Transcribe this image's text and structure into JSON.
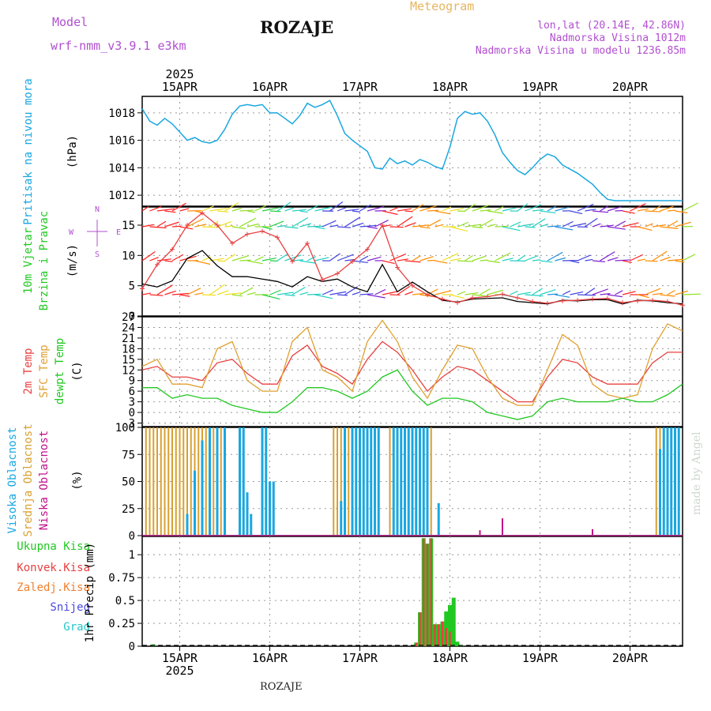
{
  "header": {
    "model_label": "Model",
    "model_name": "wrf-nmm_v3.9.1 e3km",
    "title": "ROZAJE",
    "meteogram_label": "Meteogram",
    "lonlat": "lon,lat (20.14E, 42.86N)",
    "altitude": "Nadmorska Visina 1012m",
    "model_altitude": "Nadmorska Visina u modelu 1236.85m"
  },
  "footer": {
    "station": "ROZAJE",
    "watermark": "made by Angel"
  },
  "axis": {
    "year": "2025",
    "day_labels": [
      "15APR",
      "16APR",
      "17APR",
      "18APR",
      "19APR",
      "20APR"
    ]
  },
  "panel_labels": {
    "pressure": [
      "Pritisak na nivou mora",
      "(hPa)"
    ],
    "wind": [
      "10m Vjetar",
      "Brzina i Pravac",
      "(m/s)"
    ],
    "wind_compass": [
      "N",
      "E",
      "W",
      "S"
    ],
    "temp": [
      "2m Temp",
      "SFC Temp",
      "dewpt Temp",
      "(C)"
    ],
    "cloud": [
      "Visoka Oblacnost",
      "Srednja Oblacnost",
      "Niska Oblacnost",
      "(%)"
    ],
    "precip": [
      "Ukupna Kisa",
      "Konvek.Kisa",
      "Zaledj.Kisa",
      "Snijeg",
      "Grad",
      "1hr Precip (mm)"
    ]
  },
  "colors": {
    "pressure": "#1aa7e0",
    "wind_speed": "#000000",
    "gust": "#e84040",
    "t2m": "#e84040",
    "tsfc": "#e0a030",
    "dewpt": "#22c822",
    "cloud_high": "#1aa7e0",
    "cloud_mid": "#d8a030",
    "cloud_low": "#c0108a",
    "precip_total": "#22c822",
    "precip_conv": "#e84040",
    "precip_frz": "#f08030",
    "snow": "#4a4ae0",
    "hail": "#22c8c8",
    "grid": "#999999"
  },
  "chart_data": [
    {
      "type": "line",
      "name": "pressure",
      "ylabel": "(hPa)",
      "yticks": [
        1012,
        1014,
        1016,
        1018
      ],
      "ylim": [
        1011.2,
        1019.2
      ],
      "xlim": [
        0,
        144
      ],
      "x": [
        0,
        2,
        4,
        6,
        8,
        10,
        12,
        14,
        16,
        18,
        20,
        22,
        24,
        26,
        28,
        30,
        32,
        34,
        36,
        38,
        40,
        42,
        44,
        46,
        48,
        50,
        52,
        54,
        56,
        58,
        60,
        62,
        64,
        66,
        68,
        70,
        72,
        74,
        76,
        78,
        80,
        82,
        84,
        86,
        88,
        90,
        92,
        94,
        96,
        98,
        100,
        102,
        104,
        106,
        108,
        110,
        112,
        114,
        116,
        118,
        120,
        122,
        124,
        126,
        128,
        130,
        132,
        134,
        136,
        138,
        140,
        142,
        144
      ],
      "values": [
        1018.3,
        1017.4,
        1017.1,
        1017.6,
        1017.2,
        1016.6,
        1016.0,
        1016.2,
        1015.9,
        1015.8,
        1016.0,
        1016.8,
        1017.9,
        1018.5,
        1018.6,
        1018.5,
        1018.6,
        1018.0,
        1018.0,
        1017.6,
        1017.2,
        1017.8,
        1018.7,
        1018.4,
        1018.6,
        1018.9,
        1017.8,
        1016.5,
        1016.0,
        1015.6,
        1015.2,
        1014.0,
        1013.9,
        1014.7,
        1014.3,
        1014.5,
        1014.2,
        1014.6,
        1014.4,
        1014.1,
        1013.9,
        1015.5,
        1017.6,
        1018.1,
        1017.9,
        1018.0,
        1017.4,
        1016.4,
        1015.1,
        1014.4,
        1013.8,
        1013.5,
        1014.0,
        1014.6,
        1015.0,
        1014.8,
        1014.2,
        1013.9,
        1013.6,
        1013.2,
        1012.8,
        1012.2,
        1011.7,
        1011.6,
        1011.6,
        1011.6,
        1011.6,
        1011.6,
        1011.6,
        1011.6,
        1011.6,
        1011.6,
        1011.6
      ]
    },
    {
      "type": "line",
      "name": "wind",
      "ylabel": "(m/s)",
      "yticks": [
        0,
        5,
        10,
        15
      ],
      "ylim": [
        0,
        18
      ],
      "xlim": [
        0,
        144
      ],
      "series": [
        {
          "name": "speed",
          "x": [
            0,
            4,
            8,
            12,
            16,
            20,
            24,
            28,
            32,
            36,
            40,
            44,
            48,
            52,
            56,
            60,
            64,
            68,
            72,
            76,
            80,
            84,
            88,
            92,
            96,
            100,
            104,
            108,
            112,
            116,
            120,
            124,
            128,
            132,
            136,
            140,
            144
          ],
          "values": [
            5.3,
            4.8,
            5.8,
            9.5,
            10.8,
            8.3,
            6.5,
            6.5,
            6.1,
            5.7,
            4.8,
            6.5,
            5.7,
            6.1,
            4.8,
            4.0,
            8.5,
            4.0,
            5.6,
            4.0,
            2.6,
            2.3,
            2.8,
            2.9,
            3.0,
            2.4,
            2.2,
            2.0,
            2.6,
            2.5,
            2.7,
            2.7,
            2.0,
            2.6,
            2.5,
            2.2,
            2.0
          ]
        },
        {
          "name": "gust",
          "x": [
            0,
            4,
            8,
            12,
            16,
            20,
            24,
            28,
            32,
            36,
            40,
            44,
            48,
            52,
            56,
            60,
            64,
            68,
            72,
            76,
            80,
            84,
            88,
            92,
            96,
            100,
            104,
            108,
            112,
            116,
            120,
            124,
            128,
            132,
            136,
            140,
            144
          ],
          "values": [
            4.5,
            8.5,
            11.0,
            15.0,
            17.0,
            15.0,
            12.0,
            13.5,
            14.0,
            13.0,
            9.0,
            12.0,
            6.0,
            7.0,
            9.0,
            11.0,
            15.0,
            8.0,
            5.0,
            3.5,
            2.8,
            2.2,
            3.0,
            3.2,
            3.6,
            3.0,
            2.4,
            2.1,
            2.5,
            2.6,
            2.8,
            2.9,
            2.2,
            2.5,
            2.6,
            2.4,
            1.8
          ]
        }
      ]
    },
    {
      "type": "line",
      "name": "temperature",
      "ylabel": "(C)",
      "yticks": [
        -3,
        0,
        3,
        6,
        9,
        12,
        15,
        18,
        21,
        24,
        27
      ],
      "ylim": [
        -4,
        27
      ],
      "xlim": [
        0,
        144
      ],
      "series": [
        {
          "name": "2m Temp",
          "x": [
            0,
            4,
            8,
            12,
            16,
            20,
            24,
            28,
            32,
            36,
            40,
            44,
            48,
            52,
            56,
            60,
            64,
            68,
            72,
            76,
            80,
            84,
            88,
            92,
            96,
            100,
            104,
            108,
            112,
            116,
            120,
            124,
            128,
            132,
            136,
            140,
            144
          ],
          "values": [
            12,
            13,
            10,
            10,
            9,
            14,
            15,
            11,
            8,
            8,
            16,
            19,
            13,
            11,
            8,
            15,
            20,
            17,
            12,
            6,
            10,
            13,
            12,
            9,
            6,
            3,
            3,
            10,
            15,
            14,
            10,
            8,
            8,
            8,
            14,
            17,
            17
          ]
        },
        {
          "name": "SFC Temp",
          "x": [
            0,
            4,
            8,
            12,
            16,
            20,
            24,
            28,
            32,
            36,
            40,
            44,
            48,
            52,
            56,
            60,
            64,
            68,
            72,
            76,
            80,
            84,
            88,
            92,
            96,
            100,
            104,
            108,
            112,
            116,
            120,
            124,
            128,
            132,
            136,
            140,
            144
          ],
          "values": [
            13,
            15,
            8,
            8,
            7,
            18,
            20,
            9,
            6,
            6,
            20,
            24,
            12,
            10,
            6,
            20,
            26,
            20,
            10,
            4,
            12,
            19,
            18,
            10,
            4,
            2,
            2,
            12,
            22,
            19,
            8,
            5,
            4,
            5,
            18,
            25,
            23
          ]
        },
        {
          "name": "dewpt Temp",
          "x": [
            0,
            4,
            8,
            12,
            16,
            20,
            24,
            28,
            32,
            36,
            40,
            44,
            48,
            52,
            56,
            60,
            64,
            68,
            72,
            76,
            80,
            84,
            88,
            92,
            96,
            100,
            104,
            108,
            112,
            116,
            120,
            124,
            128,
            132,
            136,
            140,
            144
          ],
          "values": [
            7,
            7,
            4,
            5,
            4,
            4,
            2,
            1,
            0,
            0,
            3,
            7,
            7,
            6,
            4,
            6,
            10,
            12,
            6,
            2,
            4,
            4,
            3,
            0,
            -1,
            -2,
            -1,
            3,
            4,
            3,
            3,
            3,
            4,
            3,
            3,
            5,
            8
          ]
        }
      ]
    },
    {
      "type": "bar",
      "name": "cloud",
      "ylabel": "(%)",
      "yticks": [
        0,
        25,
        50,
        75,
        100
      ],
      "ylim": [
        0,
        100
      ],
      "xlim": [
        0,
        144
      ],
      "series": [
        {
          "name": "Visoka Oblacnost",
          "x": [
            12,
            14,
            16,
            18,
            20,
            22,
            26,
            27,
            28,
            29,
            32,
            33,
            34,
            35,
            53,
            54,
            56,
            57,
            58,
            59,
            60,
            61,
            62,
            63,
            67,
            68,
            69,
            70,
            71,
            72,
            73,
            74,
            75,
            76,
            79,
            138,
            139,
            140,
            141,
            142,
            143
          ],
          "values": [
            20,
            60,
            88,
            100,
            100,
            100,
            100,
            100,
            40,
            20,
            100,
            100,
            50,
            50,
            32,
            100,
            100,
            100,
            100,
            100,
            100,
            100,
            100,
            100,
            100,
            100,
            100,
            100,
            100,
            100,
            100,
            100,
            100,
            100,
            30,
            80,
            100,
            100,
            100,
            100,
            100
          ]
        },
        {
          "name": "Srednja Oblacnost",
          "x": [
            1,
            2,
            3,
            4,
            5,
            6,
            7,
            8,
            9,
            10,
            11,
            12,
            13,
            14,
            15,
            16,
            17,
            18,
            19,
            20,
            21,
            22,
            51,
            52,
            53,
            54,
            55,
            56,
            57,
            58,
            59,
            60,
            61,
            62,
            63,
            66,
            67,
            68,
            69,
            70,
            71,
            72,
            73,
            74,
            75,
            76,
            77,
            137,
            138,
            139,
            140,
            141,
            142,
            143
          ],
          "values": [
            100,
            100,
            100,
            100,
            100,
            100,
            100,
            100,
            100,
            100,
            100,
            100,
            100,
            100,
            100,
            100,
            100,
            100,
            100,
            100,
            100,
            100,
            100,
            100,
            100,
            100,
            100,
            100,
            100,
            100,
            100,
            100,
            100,
            100,
            100,
            100,
            100,
            100,
            100,
            100,
            100,
            100,
            100,
            100,
            100,
            100,
            100,
            100,
            100,
            100,
            100,
            100,
            100,
            100
          ]
        },
        {
          "name": "Niska Oblacnost",
          "x": [
            90,
            96,
            120
          ],
          "values": [
            5,
            16,
            6
          ]
        }
      ]
    },
    {
      "type": "bar",
      "name": "precip",
      "ylabel": "1hr Precip (mm)",
      "yticks": [
        0,
        0.25,
        0.5,
        0.75,
        1
      ],
      "ylim": [
        0,
        1.2
      ],
      "xlim": [
        0,
        144
      ],
      "series": [
        {
          "name": "Ukupna Kisa",
          "x": [
            3,
            73,
            74,
            75,
            76,
            77,
            78,
            79,
            80,
            81,
            82,
            83,
            84,
            85
          ],
          "values": [
            0.02,
            0.04,
            0.37,
            1.18,
            1.12,
            1.18,
            0.24,
            0.24,
            0.27,
            0.38,
            0.45,
            0.53,
            0.05,
            0.01
          ]
        },
        {
          "name": "Konvek.Kisa",
          "x": [
            73,
            74,
            75,
            76,
            77,
            78,
            79,
            80,
            81,
            82
          ],
          "values": [
            0.04,
            0.37,
            1.18,
            1.12,
            1.18,
            0.24,
            0.24,
            0.27,
            0.2,
            0.16
          ]
        }
      ]
    }
  ]
}
